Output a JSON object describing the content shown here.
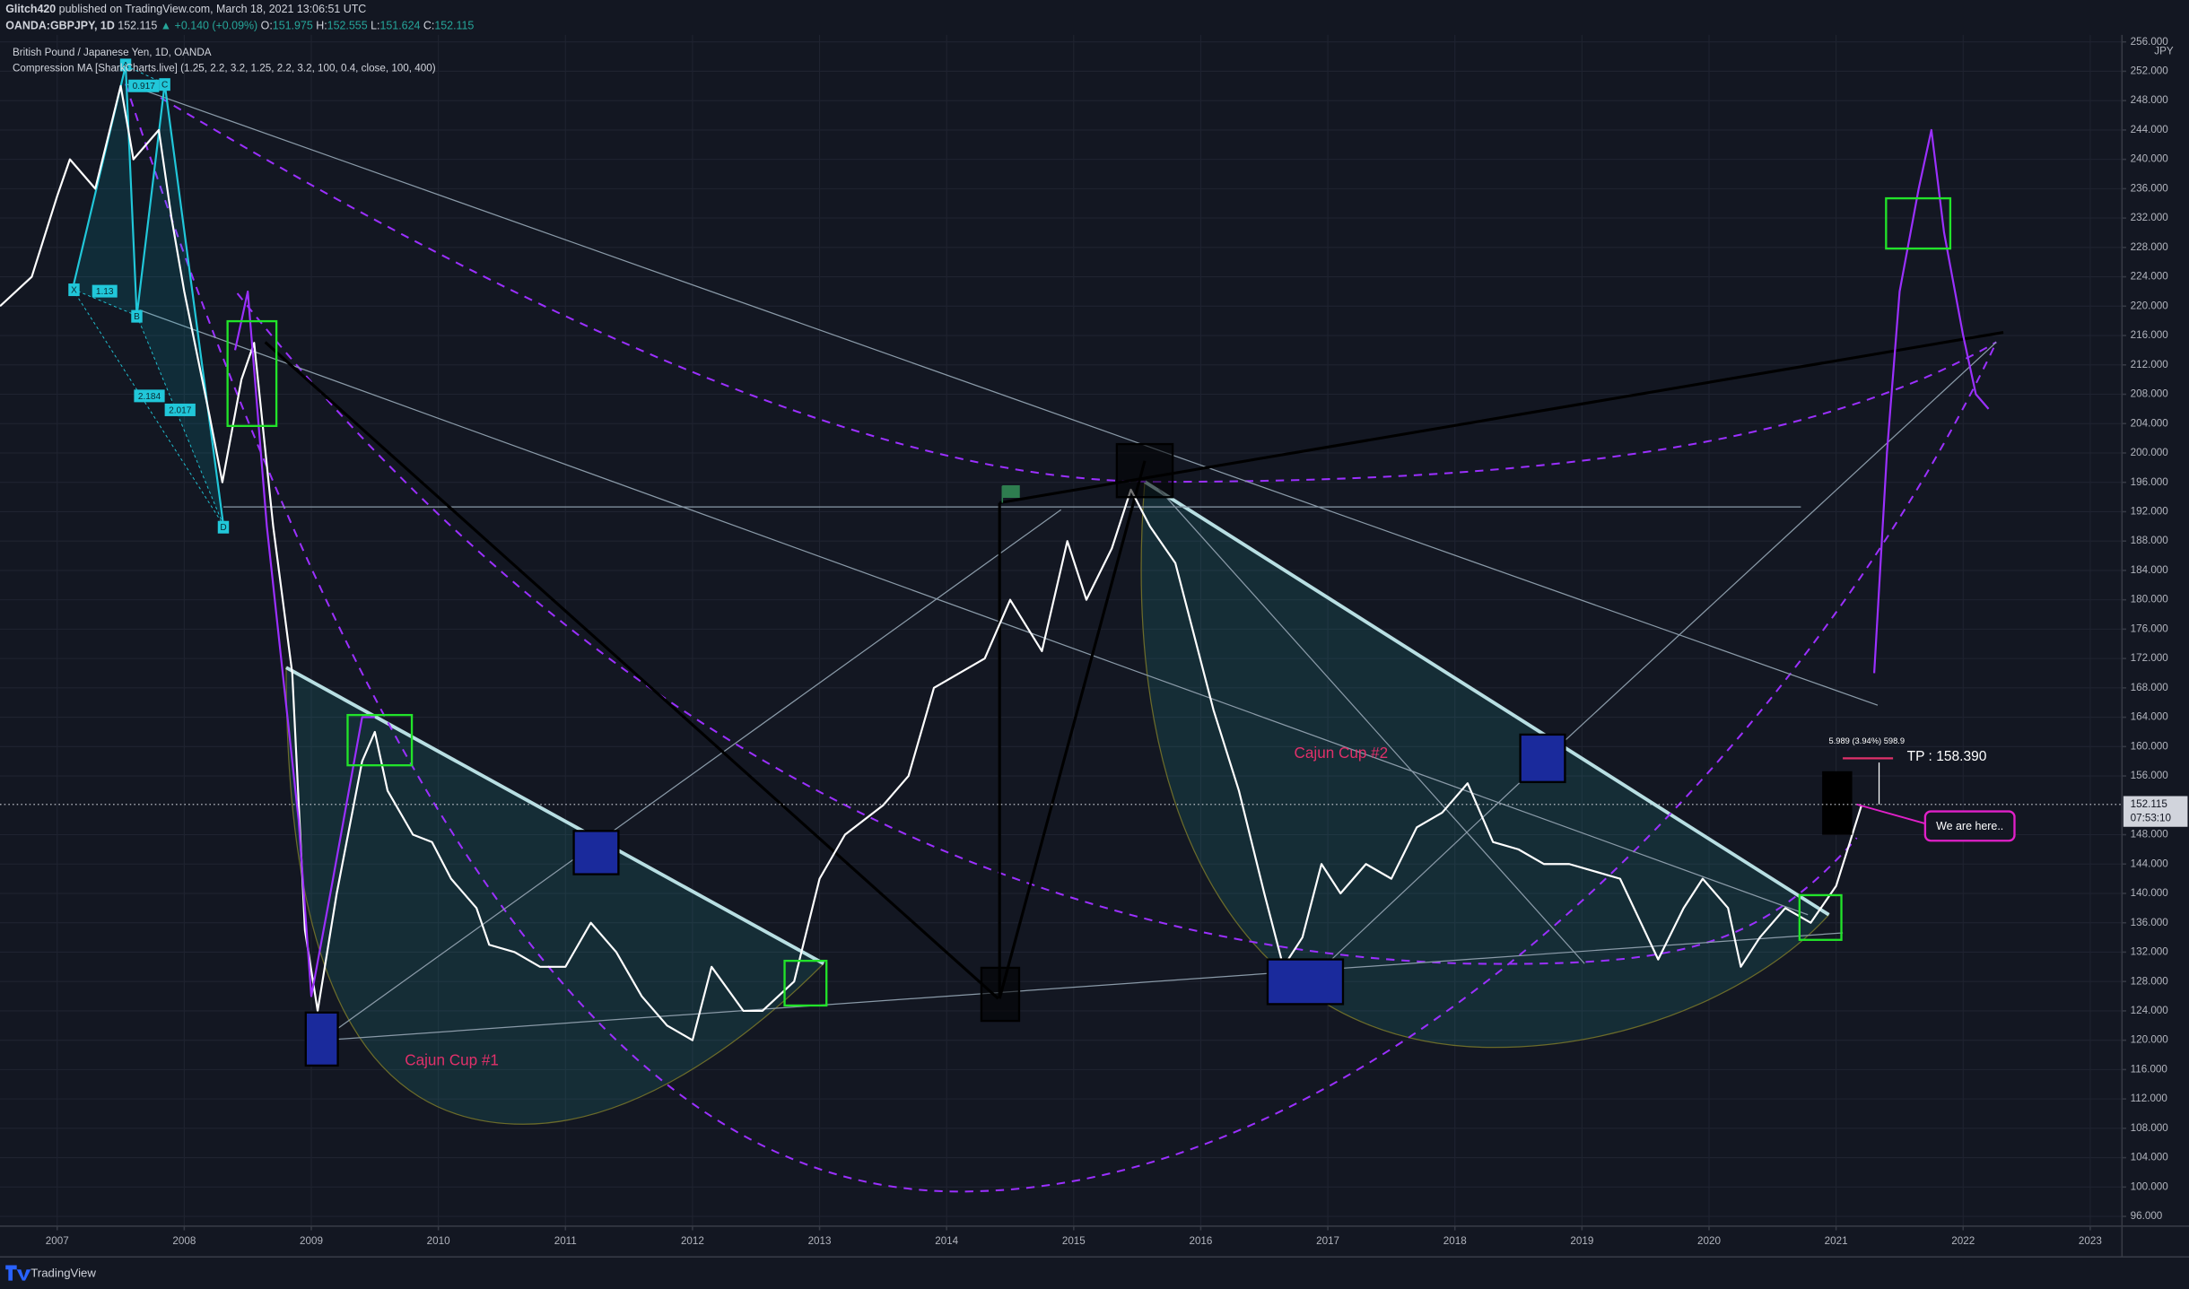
{
  "header": {
    "author": "Glitch420",
    "published": "published on TradingView.com, March 18, 2021 13:06:51 UTC",
    "symbol": "OANDA:GBPJPY, 1D",
    "last": "152.115",
    "change": "▲ +0.140 (+0.09%)",
    "o_label": "O:",
    "o": "151.975",
    "h_label": "H:",
    "h": "152.555",
    "l_label": "L:",
    "l": "151.624",
    "c_label": "C:",
    "c": "152.115"
  },
  "footer": {
    "brand": "TradingView"
  },
  "chart_data": {
    "type": "line",
    "title": "British Pound / Japanese Yen, 1D, OANDA",
    "subtitle": "Compression MA [SharkCharts.live] (1.25, 2.2, 3.2, 1.25, 2.2, 3.2, 100, 0.4, close, 100, 400)",
    "y_unit": "JPY",
    "xlim": [
      2006.55,
      2023.25
    ],
    "xticks": [
      2007,
      2008,
      2009,
      2010,
      2011,
      2012,
      2013,
      2014,
      2015,
      2016,
      2017,
      2018,
      2019,
      2020,
      2021,
      2022,
      2023
    ],
    "ylim": [
      94.67,
      256.95
    ],
    "yticks": [
      {
        "value": 96,
        "label": "96.000"
      },
      {
        "value": 100,
        "label": "100.000"
      },
      {
        "value": 104,
        "label": "104.000"
      },
      {
        "value": 108,
        "label": "108.000"
      },
      {
        "value": 112,
        "label": "112.000"
      },
      {
        "value": 116,
        "label": "116.000"
      },
      {
        "value": 120,
        "label": "120.000"
      },
      {
        "value": 124,
        "label": "124.000"
      },
      {
        "value": 128,
        "label": "128.000"
      },
      {
        "value": 132,
        "label": "132.000"
      },
      {
        "value": 136,
        "label": "136.000"
      },
      {
        "value": 140,
        "label": "140.000"
      },
      {
        "value": 144,
        "label": "144.000"
      },
      {
        "value": 148,
        "label": "148.000"
      },
      {
        "value": 156,
        "label": "156.000"
      },
      {
        "value": 160,
        "label": "160.000"
      },
      {
        "value": 164,
        "label": "164.000"
      },
      {
        "value": 168,
        "label": "168.000"
      },
      {
        "value": 172,
        "label": "172.000"
      },
      {
        "value": 176,
        "label": "176.000"
      },
      {
        "value": 180,
        "label": "180.000"
      },
      {
        "value": 184,
        "label": "184.000"
      },
      {
        "value": 188,
        "label": "188.000"
      },
      {
        "value": 192,
        "label": "192.000"
      },
      {
        "value": 196,
        "label": "196.000"
      },
      {
        "value": 200,
        "label": "200.000"
      },
      {
        "value": 204,
        "label": "204.000"
      },
      {
        "value": 208,
        "label": "208.000"
      },
      {
        "value": 212,
        "label": "212.000"
      },
      {
        "value": 216,
        "label": "216.000"
      },
      {
        "value": 220,
        "label": "220.000"
      },
      {
        "value": 224,
        "label": "224.000"
      },
      {
        "value": 228,
        "label": "228.000"
      },
      {
        "value": 232,
        "label": "232.000"
      },
      {
        "value": 236,
        "label": "236.000"
      },
      {
        "value": 240,
        "label": "240.000"
      },
      {
        "value": 244,
        "label": "244.000"
      },
      {
        "value": 248,
        "label": "248.000"
      },
      {
        "value": 252,
        "label": "252.000"
      },
      {
        "value": 256,
        "label": "256.000"
      }
    ],
    "grid": true,
    "last_price": 152.115,
    "countdown": "07:53:10",
    "series": [
      {
        "color": "#ffffff",
        "x": [
          2006.55,
          2006.8,
          2007.0,
          2007.1,
          2007.3,
          2007.5,
          2007.6,
          2007.8,
          2007.9,
          2008.0,
          2008.2,
          2008.3,
          2008.45,
          2008.55,
          2008.7,
          2008.85,
          2008.95,
          2009.05,
          2009.2,
          2009.4,
          2009.5,
          2009.6,
          2009.8,
          2009.95,
          2010.1,
          2010.3,
          2010.4,
          2010.6,
          2010.8,
          2011.0,
          2011.2,
          2011.4,
          2011.6,
          2011.8,
          2012.0,
          2012.15,
          2012.4,
          2012.55,
          2012.8,
          2013.0,
          2013.2,
          2013.5,
          2013.7,
          2013.9,
          2014.1,
          2014.3,
          2014.5,
          2014.75,
          2014.95,
          2015.1,
          2015.3,
          2015.45,
          2015.6,
          2015.8,
          2015.95,
          2016.1,
          2016.3,
          2016.5,
          2016.65,
          2016.8,
          2016.95,
          2017.1,
          2017.3,
          2017.5,
          2017.7,
          2017.9,
          2018.1,
          2018.3,
          2018.5,
          2018.7,
          2018.9,
          2019.1,
          2019.3,
          2019.6,
          2019.8,
          2019.95,
          2020.15,
          2020.25,
          2020.4,
          2020.6,
          2020.8,
          2021.0,
          2021.2
        ],
        "values": [
          220,
          224,
          235,
          240,
          236,
          250,
          240,
          244,
          232,
          222,
          205,
          196,
          210,
          215,
          190,
          170,
          135,
          124,
          140,
          158,
          162,
          154,
          148,
          147,
          142,
          138,
          133,
          132,
          130,
          130,
          136,
          132,
          126,
          122,
          120,
          130,
          124,
          124,
          128,
          142,
          148,
          152,
          156,
          168,
          170,
          172,
          180,
          173,
          188,
          180,
          187,
          195,
          190,
          185,
          175,
          165,
          154,
          140,
          130,
          134,
          144,
          140,
          144,
          142,
          149,
          151,
          155,
          147,
          146,
          144,
          144,
          143,
          142,
          131,
          138,
          142,
          138,
          130,
          134,
          138,
          136,
          141,
          152
        ]
      },
      {
        "color": "#9b30ff",
        "x": [
          2008.4,
          2008.5,
          2008.65,
          2008.9,
          2009.0,
          2009.15,
          2009.4,
          2009.5,
          2021.2,
          2021.3,
          2021.4,
          2021.5,
          2021.65,
          2021.75,
          2021.85,
          2022.0,
          2022.1,
          2022.2
        ],
        "values": [
          214,
          222,
          190,
          150,
          126,
          140,
          164,
          164,
          null,
          170,
          200,
          222,
          236,
          244,
          230,
          216,
          208,
          206
        ]
      }
    ],
    "annotations": [
      "Cajun Cup #1",
      "Cajun Cup #2",
      "TP : 158.390",
      "We are here..",
      "5.989 (3.94%) 598.9"
    ],
    "pattern_labels": [
      "X",
      "A",
      "B",
      "C",
      "D",
      "0.917",
      "1.13",
      "2.184",
      "2.017"
    ]
  }
}
